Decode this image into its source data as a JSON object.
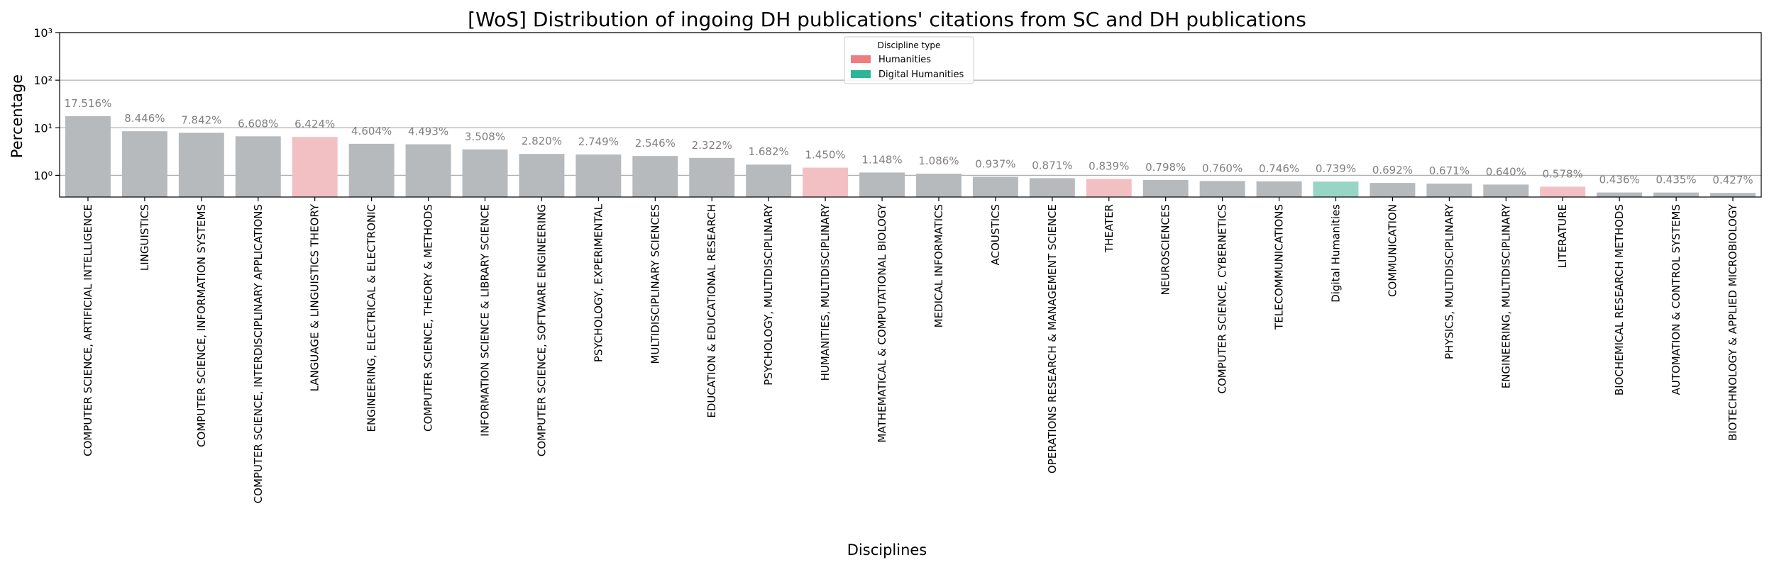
{
  "chart_data": {
    "type": "bar",
    "title": "[WoS] Distribution of ingoing DH publications' citations from SC and DH publications",
    "xlabel": "Disciplines",
    "ylabel": "Percentage",
    "yscale": "log",
    "ylim": [
      0.35,
      1000
    ],
    "yticks": [
      {
        "value": 1,
        "label": "10⁰"
      },
      {
        "value": 10,
        "label": "10¹"
      },
      {
        "value": 100,
        "label": "10²"
      },
      {
        "value": 1000,
        "label": "10³"
      }
    ],
    "grid": "horizontal",
    "legend": {
      "title": "Discipline type",
      "placement": "top-center",
      "entries": [
        {
          "label": "Humanities",
          "color": "#f07c82"
        },
        {
          "label": "Digital Humanities",
          "color": "#2db597"
        }
      ]
    },
    "colors": {
      "other": "#b6babd",
      "humanities": "#f2c0c3",
      "digital_humanities": "#97d6c5"
    },
    "categories": [
      "COMPUTER SCIENCE, ARTIFICIAL INTELLIGENCE",
      "LINGUISTICS",
      "COMPUTER SCIENCE, INFORMATION SYSTEMS",
      "COMPUTER SCIENCE, INTERDISCIPLINARY APPLICATIONS",
      "LANGUAGE & LINGUISTICS THEORY",
      "ENGINEERING, ELECTRICAL & ELECTRONIC",
      "COMPUTER SCIENCE, THEORY & METHODS",
      "INFORMATION SCIENCE & LIBRARY SCIENCE",
      "COMPUTER SCIENCE, SOFTWARE ENGINEERING",
      "PSYCHOLOGY, EXPERIMENTAL",
      "MULTIDISCIPLINARY SCIENCES",
      "EDUCATION & EDUCATIONAL RESEARCH",
      "PSYCHOLOGY, MULTIDISCIPLINARY",
      "HUMANITIES, MULTIDISCIPLINARY",
      "MATHEMATICAL & COMPUTATIONAL BIOLOGY",
      "MEDICAL INFORMATICS",
      "ACOUSTICS",
      "OPERATIONS RESEARCH & MANAGEMENT SCIENCE",
      "THEATER",
      "NEUROSCIENCES",
      "COMPUTER SCIENCE, CYBERNETICS",
      "TELECOMMUNICATIONS",
      "Digital Humanities",
      "COMMUNICATION",
      "PHYSICS, MULTIDISCIPLINARY",
      "ENGINEERING, MULTIDISCIPLINARY",
      "LITERATURE",
      "BIOCHEMICAL RESEARCH METHODS",
      "AUTOMATION & CONTROL SYSTEMS",
      "BIOTECHNOLOGY & APPLIED MICROBIOLOGY"
    ],
    "values": [
      17.516,
      8.446,
      7.842,
      6.608,
      6.424,
      4.604,
      4.493,
      3.508,
      2.82,
      2.749,
      2.546,
      2.322,
      1.682,
      1.45,
      1.148,
      1.086,
      0.937,
      0.871,
      0.839,
      0.798,
      0.76,
      0.746,
      0.739,
      0.692,
      0.671,
      0.64,
      0.578,
      0.436,
      0.435,
      0.427
    ],
    "value_labels": [
      "17.516%",
      "8.446%",
      "7.842%",
      "6.608%",
      "6.424%",
      "4.604%",
      "4.493%",
      "3.508%",
      "2.820%",
      "2.749%",
      "2.546%",
      "2.322%",
      "1.682%",
      "1.450%",
      "1.148%",
      "1.086%",
      "0.937%",
      "0.871%",
      "0.839%",
      "0.798%",
      "0.760%",
      "0.746%",
      "0.739%",
      "0.692%",
      "0.671%",
      "0.640%",
      "0.578%",
      "0.436%",
      "0.435%",
      "0.427%"
    ],
    "discipline_types": [
      "other",
      "other",
      "other",
      "other",
      "humanities",
      "other",
      "other",
      "other",
      "other",
      "other",
      "other",
      "other",
      "other",
      "humanities",
      "other",
      "other",
      "other",
      "other",
      "humanities",
      "other",
      "other",
      "other",
      "digital_humanities",
      "other",
      "other",
      "other",
      "humanities",
      "other",
      "other",
      "other"
    ]
  }
}
